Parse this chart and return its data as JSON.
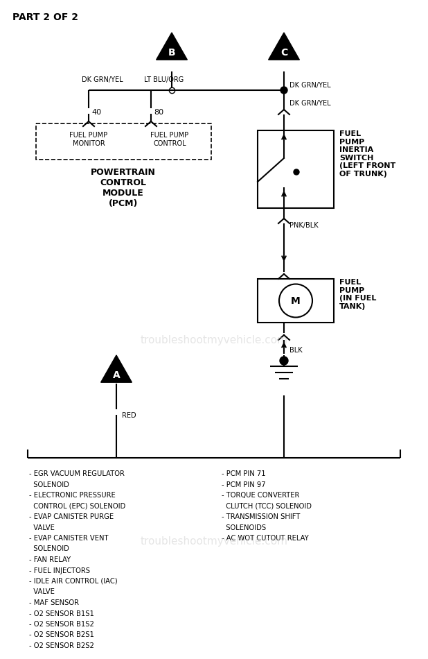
{
  "title": "PART 2 OF 2",
  "bg_color": "#ffffff",
  "line_color": "#000000",
  "watermark": "troubleshootmyvehicle.com",
  "bottom_list_left": [
    "- EGR VACUUM REGULATOR",
    "  SOLENOID",
    "- ELECTRONIC PRESSURE",
    "  CONTROL (EPC) SOLENOID",
    "- EVAP CANISTER PURGE",
    "  VALVE",
    "- EVAP CANISTER VENT",
    "  SOLENOID",
    "- FAN RELAY",
    "- FUEL INJECTORS",
    "- IDLE AIR CONTROL (IAC)",
    "  VALVE",
    "- MAF SENSOR",
    "- O2 SENSOR B1S1",
    "- O2 SENSOR B1S2",
    "- O2 SENSOR B2S1",
    "- O2 SENSOR B2S2"
  ],
  "bottom_list_right": [
    "- PCM PIN 71",
    "- PCM PIN 97",
    "- TORQUE CONVERTER",
    "  CLUTCH (TCC) SOLENOID",
    "- TRANSMISSION SHIFT",
    "  SOLENOIDS",
    "- AC WOT CUTOUT RELAY"
  ]
}
